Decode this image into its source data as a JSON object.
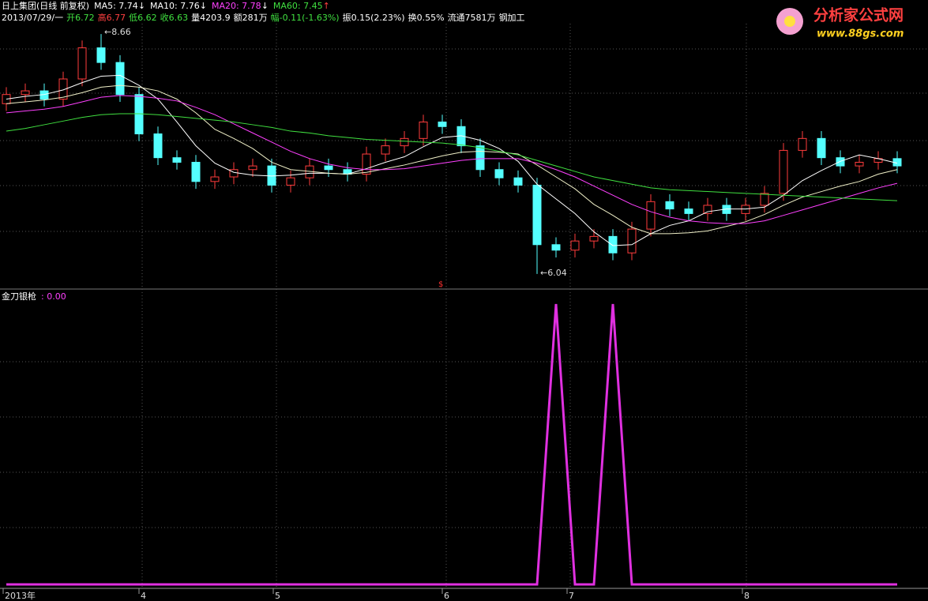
{
  "chart_data": [
    {
      "type": "candlestick",
      "header": {
        "name": "日上集团(日线 前复权)",
        "ma_labels": [
          {
            "text": "MA5: 7.74",
            "arrow": "↓"
          },
          {
            "text": "MA10: 7.76",
            "arrow": "↓"
          },
          {
            "text": "MA20: 7.78",
            "arrow": "↓"
          },
          {
            "text": "MA60: 7.45",
            "arrow": "↑"
          }
        ],
        "info": [
          "2013/07/29/一",
          "开6.72",
          "高6.77",
          "低6.62",
          "收6.63",
          "量4203.9",
          "额281万",
          "幅-0.11(-1.63%)",
          "振0.15(2.23%)",
          "换0.55%",
          "流通7581万",
          "钢加工"
        ]
      },
      "annotations": [
        {
          "text": "←8.66",
          "index": 5,
          "price": 8.66
        },
        {
          "text": "←6.04",
          "index": 28,
          "price": 6.04
        }
      ],
      "marker": "$",
      "up_color": "#ff3c3c",
      "down_color": "#54ffff",
      "ylim": [
        5.97,
        8.86
      ],
      "open": [
        7.9,
        8.0,
        8.04,
        7.95,
        8.17,
        8.51,
        8.35,
        8.0,
        7.57,
        7.31,
        7.26,
        7.05,
        7.1,
        7.18,
        7.22,
        7.01,
        7.09,
        7.22,
        7.18,
        7.13,
        7.35,
        7.44,
        7.52,
        7.7,
        7.65,
        7.44,
        7.18,
        7.09,
        7.01,
        6.36,
        6.3,
        6.4,
        6.45,
        6.27,
        6.53,
        6.83,
        6.75,
        6.7,
        6.79,
        6.7,
        6.79,
        6.92,
        7.39,
        7.52,
        7.31,
        7.22,
        7.26,
        7.3
      ],
      "high": [
        8.08,
        8.12,
        8.12,
        8.25,
        8.59,
        8.66,
        8.43,
        8.08,
        7.65,
        7.39,
        7.34,
        7.18,
        7.26,
        7.3,
        7.3,
        7.17,
        7.3,
        7.3,
        7.26,
        7.43,
        7.52,
        7.6,
        7.78,
        7.78,
        7.73,
        7.52,
        7.26,
        7.17,
        7.09,
        6.44,
        6.48,
        6.53,
        6.53,
        6.61,
        6.91,
        6.91,
        6.83,
        6.87,
        6.87,
        6.87,
        7.0,
        7.47,
        7.6,
        7.6,
        7.39,
        7.34,
        7.38,
        7.38
      ],
      "low": [
        7.82,
        7.92,
        7.87,
        7.87,
        8.09,
        8.27,
        7.92,
        7.49,
        7.23,
        7.18,
        6.97,
        6.97,
        7.02,
        7.1,
        6.93,
        6.93,
        7.01,
        7.1,
        7.05,
        7.05,
        7.27,
        7.36,
        7.44,
        7.57,
        7.36,
        7.1,
        7.01,
        6.93,
        6.04,
        6.22,
        6.22,
        6.32,
        6.19,
        6.19,
        6.45,
        6.67,
        6.62,
        6.62,
        6.62,
        6.62,
        6.71,
        6.84,
        7.31,
        7.23,
        7.14,
        7.14,
        7.18,
        7.14
      ],
      "close": [
        8.0,
        8.04,
        7.95,
        8.17,
        8.51,
        8.35,
        8.0,
        7.57,
        7.31,
        7.26,
        7.05,
        7.1,
        7.18,
        7.22,
        7.01,
        7.09,
        7.22,
        7.18,
        7.13,
        7.35,
        7.44,
        7.52,
        7.7,
        7.65,
        7.44,
        7.18,
        7.09,
        7.01,
        6.36,
        6.3,
        6.4,
        6.45,
        6.27,
        6.53,
        6.83,
        6.75,
        6.7,
        6.79,
        6.7,
        6.79,
        6.92,
        7.39,
        7.52,
        7.31,
        7.22,
        7.26,
        7.3,
        7.22
      ],
      "series": [
        {
          "name": "MA5",
          "color": "#ffffff",
          "values": [
            7.95,
            7.98,
            8.0,
            8.05,
            8.13,
            8.2,
            8.21,
            8.1,
            7.95,
            7.7,
            7.44,
            7.25,
            7.15,
            7.12,
            7.11,
            7.12,
            7.14,
            7.14,
            7.13,
            7.19,
            7.26,
            7.32,
            7.43,
            7.53,
            7.55,
            7.5,
            7.41,
            7.27,
            7.02,
            6.86,
            6.7,
            6.5,
            6.35,
            6.36,
            6.48,
            6.57,
            6.62,
            6.72,
            6.75,
            6.75,
            6.77,
            6.9,
            7.06,
            7.17,
            7.27,
            7.34,
            7.3,
            7.25
          ]
        },
        {
          "name": "MA10",
          "color": "#f0f0c8",
          "values": [
            7.9,
            7.92,
            7.94,
            7.97,
            8.02,
            8.08,
            8.1,
            8.08,
            8.04,
            7.95,
            7.8,
            7.62,
            7.52,
            7.41,
            7.26,
            7.18,
            7.16,
            7.14,
            7.13,
            7.15,
            7.19,
            7.23,
            7.28,
            7.33,
            7.37,
            7.38,
            7.37,
            7.35,
            7.23,
            7.1,
            6.97,
            6.8,
            6.68,
            6.55,
            6.48,
            6.48,
            6.49,
            6.51,
            6.56,
            6.61,
            6.69,
            6.79,
            6.88,
            6.94,
            7.0,
            7.05,
            7.13,
            7.18
          ]
        },
        {
          "name": "MA20",
          "color": "#ff40ff",
          "values": [
            7.8,
            7.82,
            7.84,
            7.87,
            7.92,
            7.97,
            7.99,
            7.98,
            7.96,
            7.93,
            7.86,
            7.78,
            7.68,
            7.58,
            7.48,
            7.38,
            7.3,
            7.24,
            7.2,
            7.18,
            7.18,
            7.19,
            7.22,
            7.25,
            7.28,
            7.3,
            7.3,
            7.3,
            7.25,
            7.18,
            7.1,
            7.0,
            6.9,
            6.8,
            6.72,
            6.66,
            6.62,
            6.6,
            6.59,
            6.59,
            6.62,
            6.68,
            6.74,
            6.8,
            6.86,
            6.92,
            6.98,
            7.03
          ]
        },
        {
          "name": "MA60",
          "color": "#40e040",
          "values": [
            7.6,
            7.63,
            7.67,
            7.71,
            7.75,
            7.78,
            7.79,
            7.79,
            7.78,
            7.76,
            7.74,
            7.72,
            7.7,
            7.67,
            7.64,
            7.6,
            7.58,
            7.55,
            7.53,
            7.51,
            7.5,
            7.49,
            7.48,
            7.47,
            7.45,
            7.42,
            7.38,
            7.34,
            7.28,
            7.22,
            7.16,
            7.1,
            7.06,
            7.02,
            6.98,
            6.96,
            6.95,
            6.94,
            6.93,
            6.92,
            6.91,
            6.9,
            6.89,
            6.88,
            6.87,
            6.86,
            6.85,
            6.84
          ]
        }
      ]
    },
    {
      "type": "line",
      "title": "金刀银枪",
      "current": ": 0.00",
      "ylim": [
        0,
        1
      ],
      "series": [
        {
          "name": "金刀银枪",
          "color": "#e030e0",
          "values": [
            0,
            0,
            0,
            0,
            0,
            0,
            0,
            0,
            0,
            0,
            0,
            0,
            0,
            0,
            0,
            0,
            0,
            0,
            0,
            0,
            0,
            0,
            0,
            0,
            0,
            0,
            0,
            0,
            0,
            1,
            0,
            0,
            1,
            0,
            0,
            0,
            0,
            0,
            0,
            0,
            0,
            0,
            0,
            0,
            0,
            0,
            0,
            0
          ]
        }
      ],
      "x_labels": [
        "2013年",
        "4",
        "5",
        "6",
        "7",
        "8"
      ]
    }
  ],
  "logo": {
    "title": "分析家公式网",
    "url": "www.88gs.com"
  }
}
